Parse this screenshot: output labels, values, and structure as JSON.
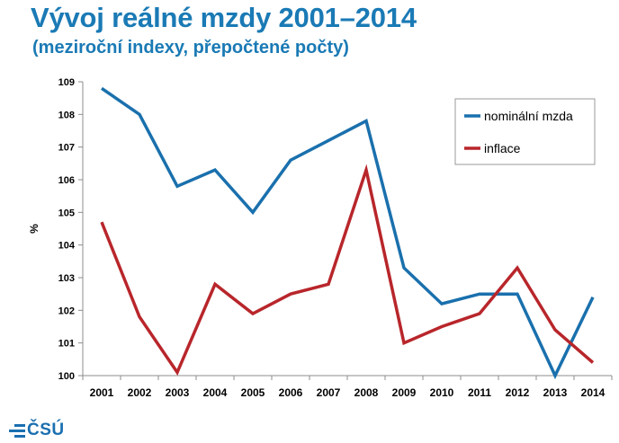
{
  "header": {
    "title": "Vývoj reálné mzdy 2001–2014",
    "subtitle": "(meziroční indexy, přepočtené počty)"
  },
  "footer": {
    "logo_text": "ČSÚ"
  },
  "colors": {
    "title": "#1a7ab5",
    "nominal": "#1a70ad",
    "inflation": "#b8262b",
    "logo": "#1a6fb0"
  },
  "chart_data": {
    "type": "line",
    "title": "Vývoj reálné mzdy 2001–2014",
    "subtitle": "(meziroční indexy, přepočtené počty)",
    "xlabel": "",
    "ylabel": "%",
    "ylim": [
      100,
      109
    ],
    "yticks": [
      "100",
      "101",
      "102",
      "103",
      "104",
      "105",
      "106",
      "107",
      "108",
      "109"
    ],
    "categories": [
      "2001",
      "2002",
      "2003",
      "2004",
      "2005",
      "2006",
      "2007",
      "2008",
      "2009",
      "2010",
      "2011",
      "2012",
      "2013",
      "2014"
    ],
    "series": [
      {
        "name": "nominální mzda",
        "color": "#1a70ad",
        "values": [
          108.8,
          108.0,
          105.8,
          106.3,
          105.0,
          106.6,
          107.2,
          107.8,
          103.3,
          102.2,
          102.5,
          102.5,
          100.0,
          102.4
        ]
      },
      {
        "name": "inflace",
        "color": "#b8262b",
        "values": [
          104.7,
          101.8,
          100.1,
          102.8,
          101.9,
          102.5,
          102.8,
          106.3,
          101.0,
          101.5,
          101.9,
          103.3,
          101.4,
          100.4
        ]
      }
    ],
    "grid": false,
    "legend": "top-right"
  }
}
